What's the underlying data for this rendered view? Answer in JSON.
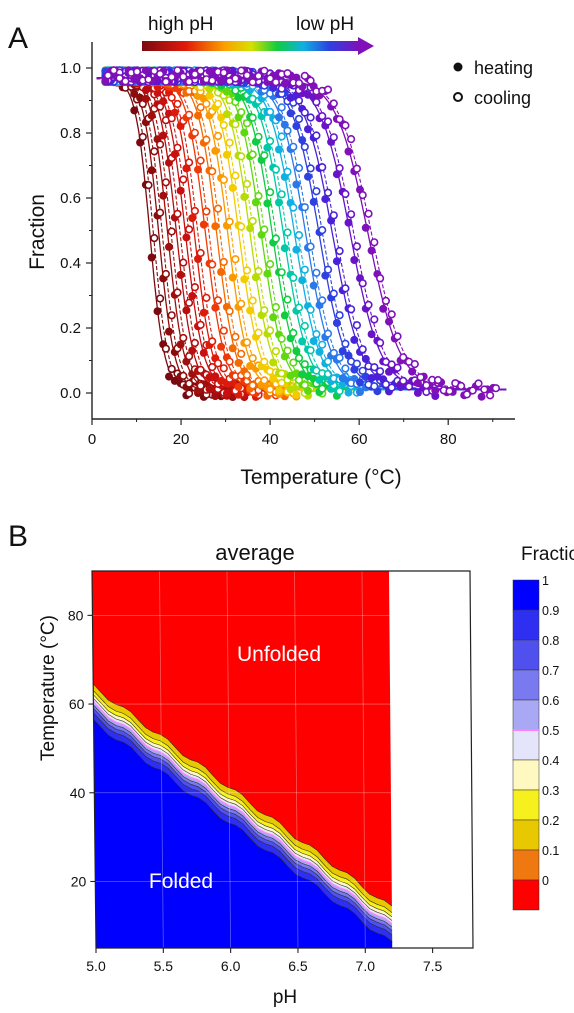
{
  "panel_a": {
    "letter": "A",
    "arrow_left_label": "high pH",
    "arrow_right_label": "low pH",
    "legend": [
      {
        "label": "heating",
        "marker": "filled-circle"
      },
      {
        "label": "cooling",
        "marker": "open-circle"
      }
    ]
  },
  "panel_b": {
    "letter": "B",
    "region_unfolded": "Unfolded",
    "region_folded": "Folded",
    "colorbar": {
      "title": "Fraction",
      "levels": [
        {
          "label": "1",
          "color": "#0000ff"
        },
        {
          "label": "0.9",
          "color": "#2f2ff2"
        },
        {
          "label": "0.8",
          "color": "#5050ee"
        },
        {
          "label": "0.7",
          "color": "#7a7af0"
        },
        {
          "label": "0.6",
          "color": "#a8a8f4"
        },
        {
          "label": "0.5",
          "color": "#e4e4fa"
        },
        {
          "label": "0.4",
          "color": "#fff8c0"
        },
        {
          "label": "0.3",
          "color": "#f5f01e"
        },
        {
          "label": "0.2",
          "color": "#e8c800"
        },
        {
          "label": "0.1",
          "color": "#f07810"
        },
        {
          "label": "0",
          "color": "#ff0000"
        }
      ],
      "midline_color": "#ff80ff"
    }
  },
  "chart_data": [
    {
      "type": "scatter",
      "title": "",
      "xlabel": "Temperature (°C)",
      "ylabel": "Fraction",
      "xlim": [
        0,
        95
      ],
      "ylim": [
        -0.08,
        1.08
      ],
      "xticks": [
        "0",
        "20",
        "40",
        "60",
        "80"
      ],
      "yticks": [
        "0.0",
        "0.2",
        "0.4",
        "0.6",
        "0.8",
        "1.0"
      ],
      "grid": false,
      "legend_position": "top-right",
      "curve_model": "sigmoid: fraction = 1 / (1 + exp((T - Tm) / k))",
      "series": [
        {
          "color": "#7a0a10",
          "Tm": 13,
          "k": 1.6,
          "t_range": [
            3,
            30
          ]
        },
        {
          "color": "#8c0c0c",
          "Tm": 15,
          "k": 1.7,
          "t_range": [
            3,
            32
          ]
        },
        {
          "color": "#a00e0e",
          "Tm": 17,
          "k": 1.8,
          "t_range": [
            3,
            34
          ]
        },
        {
          "color": "#b40e0e",
          "Tm": 19,
          "k": 1.9,
          "t_range": [
            3,
            36
          ]
        },
        {
          "color": "#c81010",
          "Tm": 21,
          "k": 2.0,
          "t_range": [
            3,
            38
          ]
        },
        {
          "color": "#dc1a0a",
          "Tm": 23,
          "k": 2.0,
          "t_range": [
            3,
            40
          ]
        },
        {
          "color": "#ee3a08",
          "Tm": 25.5,
          "k": 2.1,
          "t_range": [
            3,
            42
          ]
        },
        {
          "color": "#f56a00",
          "Tm": 28,
          "k": 2.1,
          "t_range": [
            3,
            44
          ]
        },
        {
          "color": "#fb9a00",
          "Tm": 30.5,
          "k": 2.2,
          "t_range": [
            3,
            46
          ]
        },
        {
          "color": "#f2cc00",
          "Tm": 33,
          "k": 2.3,
          "t_range": [
            3,
            48
          ]
        },
        {
          "color": "#b8dc00",
          "Tm": 35.5,
          "k": 2.4,
          "t_range": [
            3,
            50
          ]
        },
        {
          "color": "#60d810",
          "Tm": 38,
          "k": 2.5,
          "t_range": [
            3,
            52
          ]
        },
        {
          "color": "#10cc40",
          "Tm": 40.5,
          "k": 2.6,
          "t_range": [
            3,
            55
          ]
        },
        {
          "color": "#00c8a8",
          "Tm": 43,
          "k": 2.7,
          "t_range": [
            3,
            57
          ]
        },
        {
          "color": "#10b0e0",
          "Tm": 45.5,
          "k": 2.8,
          "t_range": [
            3,
            60
          ]
        },
        {
          "color": "#2a78ea",
          "Tm": 48,
          "k": 2.9,
          "t_range": [
            3,
            63
          ]
        },
        {
          "color": "#2e40e0",
          "Tm": 51,
          "k": 3.0,
          "t_range": [
            3,
            66
          ]
        },
        {
          "color": "#4a20d8",
          "Tm": 54,
          "k": 3.2,
          "t_range": [
            3,
            70
          ]
        },
        {
          "color": "#6a12c8",
          "Tm": 58,
          "k": 3.4,
          "t_range": [
            3,
            78
          ]
        },
        {
          "color": "#8010b8",
          "Tm": 62,
          "k": 3.6,
          "t_range": [
            3,
            91
          ]
        }
      ]
    },
    {
      "type": "heatmap",
      "title": "average",
      "xlabel": "pH",
      "ylabel": "Temperature (°C)",
      "xlim": [
        5.0,
        7.8
      ],
      "ylim": [
        5,
        90
      ],
      "xticks": [
        "5.0",
        "5.5",
        "6.0",
        "6.5",
        "7.0",
        "7.5"
      ],
      "yticks": [
        "20",
        "40",
        "60",
        "80"
      ],
      "data_ph_max": 7.2,
      "transition_midpoint": [
        [
          5.0,
          60
        ],
        [
          7.2,
          10
        ]
      ],
      "transition_width_c": 16,
      "grid": true
    }
  ]
}
